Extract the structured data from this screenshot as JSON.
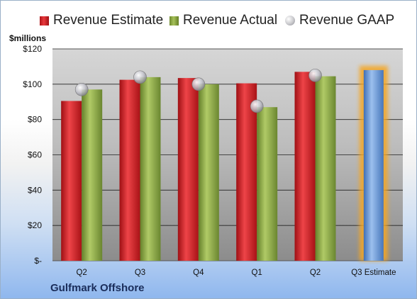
{
  "legend": {
    "estimate": "Revenue Estimate",
    "actual": "Revenue Actual",
    "gaap": "Revenue GAAP"
  },
  "company": "Gulfmark Offshore",
  "colors": {
    "estimate": "#d3282d",
    "actual": "#8fad45",
    "gaap": "#c0c0c8",
    "projected": "#6f9fd8",
    "projected_glow": "#f5a623"
  },
  "chart_data": {
    "type": "bar",
    "ylabel": "$millions",
    "ylim": [
      0,
      120
    ],
    "y_ticks": [
      0,
      20,
      40,
      60,
      80,
      100,
      120
    ],
    "y_tick_labels": [
      "$-",
      "$20",
      "$40",
      "$60",
      "$80",
      "$100",
      "$120"
    ],
    "grid": true,
    "legend_position": "top",
    "categories": [
      "Q2",
      "Q3",
      "Q4",
      "Q1",
      "Q2",
      "Q3 Estimate"
    ],
    "series": [
      {
        "name": "Revenue Estimate",
        "values": [
          90.5,
          102.5,
          103.5,
          100.5,
          107,
          null
        ]
      },
      {
        "name": "Revenue Actual",
        "values": [
          97,
          104,
          100,
          87,
          104.5,
          null
        ]
      },
      {
        "name": "Revenue GAAP",
        "values": [
          97,
          104,
          100,
          87.5,
          105,
          null
        ]
      }
    ],
    "projected": {
      "category": "Q3 Estimate",
      "value": 108
    }
  }
}
